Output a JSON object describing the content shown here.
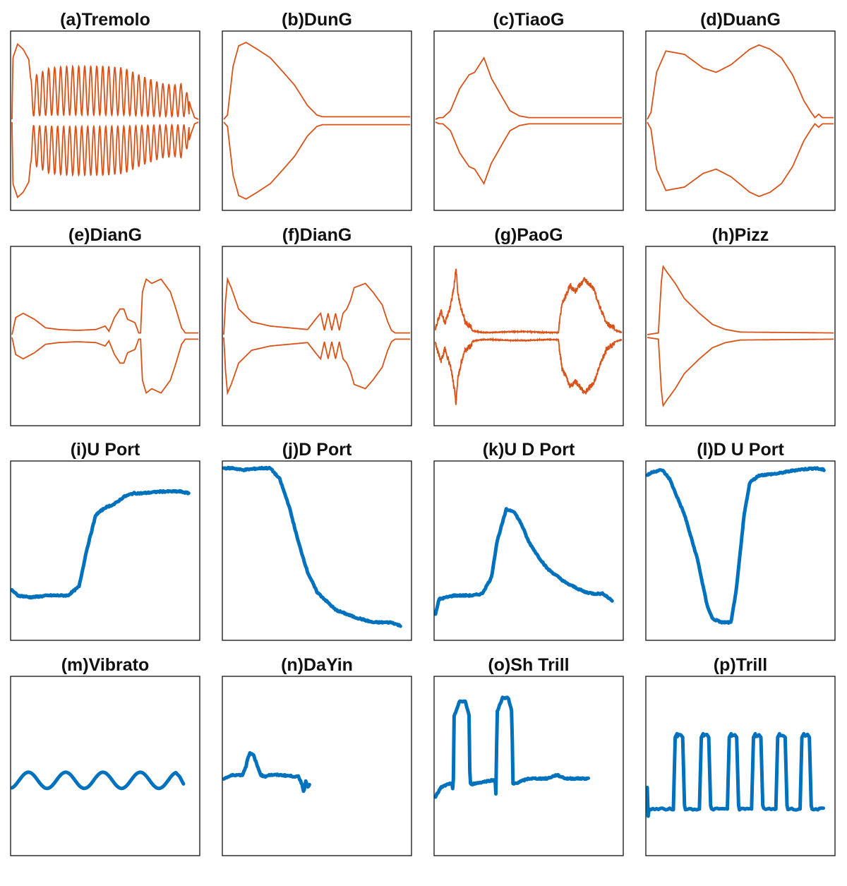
{
  "colors": {
    "envelope": "#d95319",
    "pitch": "#0072bd",
    "frame": "#222222"
  },
  "chart_data": [
    {
      "id": "a",
      "title": "(a)Tremolo",
      "type": "line",
      "xlim": [
        0,
        1
      ],
      "ylim": [
        -1,
        1
      ],
      "series": [
        {
          "kind": "envelope",
          "color": "#d95319",
          "x": [
            0,
            0.005,
            0.03,
            0.06,
            0.09,
            0.1,
            0.2,
            0.3,
            0.4,
            0.5,
            0.6,
            0.7,
            0.8,
            0.87,
            0.92,
            0.94,
            0.96,
            0.98,
            1
          ],
          "y": [
            0,
            0.72,
            0.88,
            0.82,
            0.7,
            0.48,
            0.6,
            0.62,
            0.62,
            0.62,
            0.6,
            0.5,
            0.42,
            0.4,
            0.42,
            0.3,
            0.14,
            0.02,
            0
          ],
          "mod": {
            "freq": 31,
            "depth": 0.92,
            "from": 0.1,
            "to": 0.95
          }
        }
      ]
    },
    {
      "id": "b",
      "title": "(b)DunG",
      "type": "line",
      "xlim": [
        0,
        1
      ],
      "ylim": [
        -1,
        1
      ],
      "series": [
        {
          "kind": "envelope",
          "color": "#d95319",
          "x": [
            0,
            0.02,
            0.05,
            0.08,
            0.12,
            0.18,
            0.25,
            0.32,
            0.38,
            0.45,
            0.5,
            0.53,
            0.58,
            1
          ],
          "y": [
            0,
            0.05,
            0.62,
            0.86,
            0.9,
            0.82,
            0.72,
            0.55,
            0.4,
            0.16,
            0.05,
            0.03,
            0.03,
            0.03
          ]
        }
      ]
    },
    {
      "id": "c",
      "title": "(c)TiaoG",
      "type": "line",
      "xlim": [
        0,
        1
      ],
      "ylim": [
        -1,
        1
      ],
      "series": [
        {
          "kind": "envelope",
          "color": "#d95319",
          "x": [
            0,
            0.02,
            0.04,
            0.08,
            0.13,
            0.18,
            0.21,
            0.26,
            0.3,
            0.36,
            0.4,
            0.45,
            0.5,
            0.55,
            1
          ],
          "y": [
            0,
            0.02,
            0.02,
            0.1,
            0.36,
            0.52,
            0.55,
            0.72,
            0.48,
            0.25,
            0.1,
            0.04,
            0.02,
            0.02,
            0.02
          ]
        }
      ]
    },
    {
      "id": "d",
      "title": "(d)DuanG",
      "type": "line",
      "xlim": [
        0,
        1
      ],
      "ylim": [
        -1,
        1
      ],
      "series": [
        {
          "kind": "envelope",
          "color": "#d95319",
          "x": [
            0,
            0.02,
            0.05,
            0.1,
            0.2,
            0.3,
            0.37,
            0.45,
            0.55,
            0.6,
            0.66,
            0.72,
            0.78,
            0.84,
            0.88,
            0.9,
            0.92,
            0.94,
            0.96,
            1
          ],
          "y": [
            0,
            0.08,
            0.55,
            0.8,
            0.76,
            0.6,
            0.55,
            0.64,
            0.82,
            0.87,
            0.82,
            0.72,
            0.52,
            0.22,
            0.08,
            0.02,
            0.06,
            0.02,
            0.02,
            0.02
          ]
        }
      ]
    },
    {
      "id": "e",
      "title": "(e)DianG",
      "type": "line",
      "xlim": [
        0,
        1
      ],
      "ylim": [
        -1,
        1
      ],
      "series": [
        {
          "kind": "envelope",
          "color": "#d95319",
          "x": [
            0,
            0.02,
            0.06,
            0.12,
            0.18,
            0.25,
            0.35,
            0.45,
            0.5,
            0.52,
            0.55,
            0.58,
            0.6,
            0.62,
            0.66,
            0.68,
            0.69,
            0.7,
            0.72,
            0.75,
            0.8,
            0.85,
            0.88,
            0.91,
            0.93,
            0.96,
            1
          ],
          "y": [
            0,
            0.2,
            0.25,
            0.18,
            0.08,
            0.06,
            0.05,
            0.06,
            0.1,
            0.04,
            0.2,
            0.3,
            0.3,
            0.18,
            0.14,
            0.02,
            0.02,
            0.5,
            0.65,
            0.6,
            0.65,
            0.5,
            0.3,
            0.08,
            0.02,
            0.02,
            0.02
          ]
        }
      ]
    },
    {
      "id": "f",
      "title": "(f)DianG",
      "type": "line",
      "xlim": [
        0,
        1
      ],
      "ylim": [
        -1,
        1
      ],
      "series": [
        {
          "kind": "envelope",
          "color": "#d95319",
          "x": [
            0,
            0.01,
            0.02,
            0.04,
            0.08,
            0.15,
            0.25,
            0.35,
            0.45,
            0.5,
            0.52,
            0.54,
            0.56,
            0.58,
            0.6,
            0.62,
            0.64,
            0.66,
            0.68,
            0.7,
            0.76,
            0.8,
            0.85,
            0.88,
            0.9,
            0.92,
            1
          ],
          "y": [
            0,
            0.4,
            0.65,
            0.55,
            0.3,
            0.15,
            0.1,
            0.08,
            0.06,
            0.2,
            0.25,
            0.05,
            0.25,
            0.05,
            0.25,
            0.05,
            0.25,
            0.3,
            0.4,
            0.55,
            0.6,
            0.5,
            0.35,
            0.15,
            0.05,
            0.02,
            0.02
          ]
        }
      ]
    },
    {
      "id": "g",
      "title": "(g)PaoG",
      "type": "line",
      "xlim": [
        0,
        1
      ],
      "ylim": [
        -1,
        1
      ],
      "series": [
        {
          "kind": "envelope",
          "color": "#d95319",
          "x": [
            0,
            0.03,
            0.05,
            0.08,
            0.1,
            0.11,
            0.12,
            0.14,
            0.16,
            0.2,
            0.25,
            0.3,
            0.4,
            0.5,
            0.6,
            0.66,
            0.68,
            0.7,
            0.72,
            0.75,
            0.8,
            0.85,
            0.88,
            0.92,
            0.96,
            1
          ],
          "y": [
            0.05,
            0.25,
            0.1,
            0.3,
            0.55,
            0.75,
            0.45,
            0.25,
            0.12,
            0.04,
            0.02,
            0.02,
            0.03,
            0.03,
            0.02,
            0.02,
            0.35,
            0.42,
            0.55,
            0.48,
            0.62,
            0.5,
            0.3,
            0.1,
            0.05,
            0.02
          ],
          "noise": 0.06
        }
      ]
    },
    {
      "id": "h",
      "title": "(h)Pizz",
      "type": "line",
      "xlim": [
        0,
        1
      ],
      "ylim": [
        -1,
        1
      ],
      "series": [
        {
          "kind": "envelope",
          "color": "#d95319",
          "x": [
            0,
            0.06,
            0.075,
            0.085,
            0.1,
            0.15,
            0.2,
            0.28,
            0.35,
            0.42,
            0.5,
            1
          ],
          "y": [
            0,
            0.02,
            0.6,
            0.8,
            0.75,
            0.6,
            0.42,
            0.25,
            0.12,
            0.06,
            0.03,
            0.02
          ]
        }
      ]
    },
    {
      "id": "i",
      "title": "(i)U Port",
      "type": "line",
      "xlim": [
        0,
        1
      ],
      "ylim": [
        0,
        1
      ],
      "series": [
        {
          "kind": "pitch",
          "color": "#0072bd",
          "x": [
            0,
            0.03,
            0.1,
            0.2,
            0.3,
            0.36,
            0.4,
            0.45,
            0.5,
            0.55,
            0.6,
            0.65,
            0.7,
            0.8,
            0.9,
            0.95
          ],
          "y": [
            0.28,
            0.25,
            0.24,
            0.25,
            0.25,
            0.3,
            0.5,
            0.7,
            0.74,
            0.76,
            0.8,
            0.82,
            0.82,
            0.83,
            0.83,
            0.82
          ]
        }
      ]
    },
    {
      "id": "j",
      "title": "(j)D Port",
      "type": "line",
      "xlim": [
        0,
        1
      ],
      "ylim": [
        0,
        1
      ],
      "series": [
        {
          "kind": "pitch",
          "color": "#0072bd",
          "x": [
            0,
            0.05,
            0.1,
            0.2,
            0.25,
            0.3,
            0.35,
            0.4,
            0.45,
            0.5,
            0.55,
            0.6,
            0.7,
            0.8,
            0.85,
            0.9,
            0.95
          ],
          "y": [
            0.96,
            0.96,
            0.95,
            0.96,
            0.96,
            0.9,
            0.75,
            0.55,
            0.38,
            0.27,
            0.22,
            0.17,
            0.13,
            0.1,
            0.1,
            0.1,
            0.08
          ]
        }
      ]
    },
    {
      "id": "k",
      "title": "(k)U D Port",
      "type": "line",
      "xlim": [
        0,
        1
      ],
      "ylim": [
        0,
        1
      ],
      "series": [
        {
          "kind": "pitch",
          "color": "#0072bd",
          "x": [
            0,
            0.02,
            0.1,
            0.2,
            0.25,
            0.3,
            0.33,
            0.38,
            0.42,
            0.46,
            0.5,
            0.55,
            0.6,
            0.7,
            0.8,
            0.85,
            0.9,
            0.95
          ],
          "y": [
            0.15,
            0.23,
            0.25,
            0.25,
            0.26,
            0.35,
            0.55,
            0.73,
            0.72,
            0.65,
            0.55,
            0.47,
            0.4,
            0.32,
            0.27,
            0.26,
            0.26,
            0.22
          ]
        }
      ]
    },
    {
      "id": "l",
      "title": "(l)D U Port",
      "type": "line",
      "xlim": [
        0,
        1
      ],
      "ylim": [
        0,
        1
      ],
      "series": [
        {
          "kind": "pitch",
          "color": "#0072bd",
          "x": [
            0,
            0.03,
            0.08,
            0.12,
            0.2,
            0.27,
            0.32,
            0.35,
            0.4,
            0.45,
            0.48,
            0.52,
            0.55,
            0.6,
            0.7,
            0.8,
            0.9,
            0.95
          ],
          "y": [
            0.92,
            0.94,
            0.95,
            0.9,
            0.7,
            0.45,
            0.2,
            0.12,
            0.1,
            0.1,
            0.3,
            0.7,
            0.88,
            0.92,
            0.93,
            0.95,
            0.96,
            0.95
          ]
        }
      ]
    },
    {
      "id": "m",
      "title": "(m)Vibrato",
      "type": "line",
      "xlim": [
        0,
        1
      ],
      "ylim": [
        0,
        1
      ],
      "series": [
        {
          "kind": "pitch",
          "color": "#0072bd",
          "x": [
            0,
            0.88
          ],
          "y": [
            0.42,
            0.42
          ],
          "mod": {
            "freq": 5,
            "amp": 0.045,
            "from": 0,
            "to": 0.88
          },
          "tail": {
            "x": [
              0.9,
              0.92
            ],
            "y": [
              0.44,
              0.4
            ]
          }
        }
      ]
    },
    {
      "id": "n",
      "title": "(n)DaYin",
      "type": "line",
      "xlim": [
        0,
        1
      ],
      "ylim": [
        0,
        1
      ],
      "series": [
        {
          "kind": "pitch",
          "color": "#0072bd",
          "x": [
            0,
            0.05,
            0.1,
            0.12,
            0.13,
            0.14,
            0.16,
            0.18,
            0.2,
            0.22,
            0.24,
            0.3,
            0.4,
            0.42,
            0.43,
            0.44,
            0.45,
            0.46
          ],
          "y": [
            0.43,
            0.45,
            0.45,
            0.5,
            0.55,
            0.57,
            0.56,
            0.5,
            0.45,
            0.44,
            0.45,
            0.45,
            0.44,
            0.4,
            0.35,
            0.42,
            0.38,
            0.4
          ]
        }
      ]
    },
    {
      "id": "o",
      "title": "(o)Sh Trill",
      "type": "line",
      "xlim": [
        0,
        1
      ],
      "ylim": [
        0,
        1
      ],
      "series": [
        {
          "kind": "pitch",
          "color": "#0072bd",
          "x": [
            0,
            0.03,
            0.07,
            0.09,
            0.095,
            0.1,
            0.13,
            0.16,
            0.18,
            0.185,
            0.19,
            0.2,
            0.3,
            0.32,
            0.325,
            0.33,
            0.36,
            0.39,
            0.41,
            0.415,
            0.42,
            0.5,
            0.6,
            0.65,
            0.7,
            0.8,
            0.82
          ],
          "y": [
            0.33,
            0.38,
            0.4,
            0.4,
            0.33,
            0.78,
            0.86,
            0.86,
            0.78,
            0.4,
            0.4,
            0.4,
            0.42,
            0.42,
            0.33,
            0.8,
            0.88,
            0.88,
            0.8,
            0.4,
            0.4,
            0.43,
            0.43,
            0.45,
            0.43,
            0.43,
            0.43
          ]
        }
      ]
    },
    {
      "id": "p",
      "title": "(p)Trill",
      "type": "line",
      "xlim": [
        0,
        1
      ],
      "ylim": [
        0,
        1
      ],
      "series": [
        {
          "kind": "pitch",
          "color": "#0072bd",
          "x": [
            0,
            0.005,
            0.01,
            1
          ],
          "y": [
            0.38,
            0.22,
            0.26,
            0.26
          ],
          "square": {
            "pulses": [
              [
                0.14,
                0.2
              ],
              [
                0.28,
                0.34
              ],
              [
                0.43,
                0.49
              ],
              [
                0.56,
                0.62
              ],
              [
                0.69,
                0.75
              ],
              [
                0.82,
                0.88
              ]
            ],
            "low": 0.26,
            "high": 0.68
          }
        }
      ]
    }
  ]
}
